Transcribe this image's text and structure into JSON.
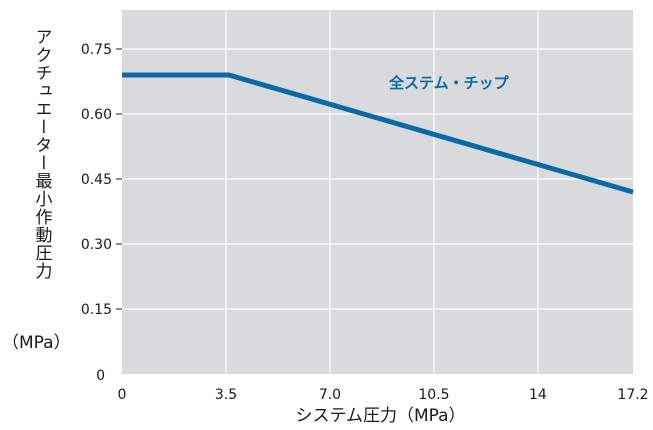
{
  "chart_data": {
    "type": "line",
    "xlabel": "システム圧力（MPa）",
    "ylabel": "アクチュエーター最小作動圧力",
    "ylabel_unit": "（MPa）",
    "x_ticks": [
      "0",
      "3.5",
      "7.0",
      "10.5",
      "14",
      "17.2"
    ],
    "y_ticks": [
      "0",
      "0.15",
      "0.30",
      "0.45",
      "0.60",
      "0.75"
    ],
    "xlim": [
      0,
      17.2
    ],
    "ylim": [
      0,
      0.84
    ],
    "grid": true,
    "series": [
      {
        "name": "全ステム・チップ",
        "x": [
          0,
          3.6,
          17.2
        ],
        "y": [
          0.69,
          0.69,
          0.42
        ]
      }
    ]
  },
  "colors": {
    "plot_background": "#d9dadc",
    "grid": "#ffffff",
    "series": "#0b6aa6",
    "annotation": "#0b6aa6",
    "text": "#1a1a1a"
  }
}
